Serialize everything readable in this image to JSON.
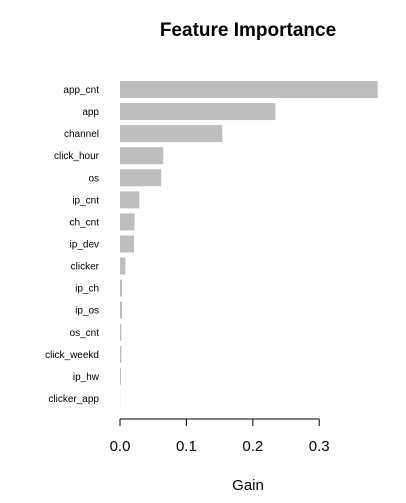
{
  "chart_data": {
    "type": "bar",
    "orientation": "horizontal",
    "title": "Feature Importance",
    "xlabel": "Gain",
    "ylabel": "",
    "categories": [
      "app_cnt",
      "app",
      "channel",
      "click_hour",
      "os",
      "ip_cnt",
      "ch_cnt",
      "ip_dev",
      "clicker",
      "ip_ch",
      "ip_os",
      "os_cnt",
      "click_weekd",
      "ip_hw",
      "clicker_app"
    ],
    "values": [
      0.388,
      0.234,
      0.154,
      0.065,
      0.062,
      0.029,
      0.022,
      0.021,
      0.008,
      0.003,
      0.003,
      0.002,
      0.002,
      0.0015,
      0.0002
    ],
    "xlim": [
      0,
      0.39
    ],
    "xticks": [
      0.0,
      0.1,
      0.2,
      0.3
    ],
    "xtick_labels": [
      "0.0",
      "0.1",
      "0.2",
      "0.3"
    ],
    "bar_color": "#bebebe",
    "grid": false,
    "legend": "none"
  }
}
